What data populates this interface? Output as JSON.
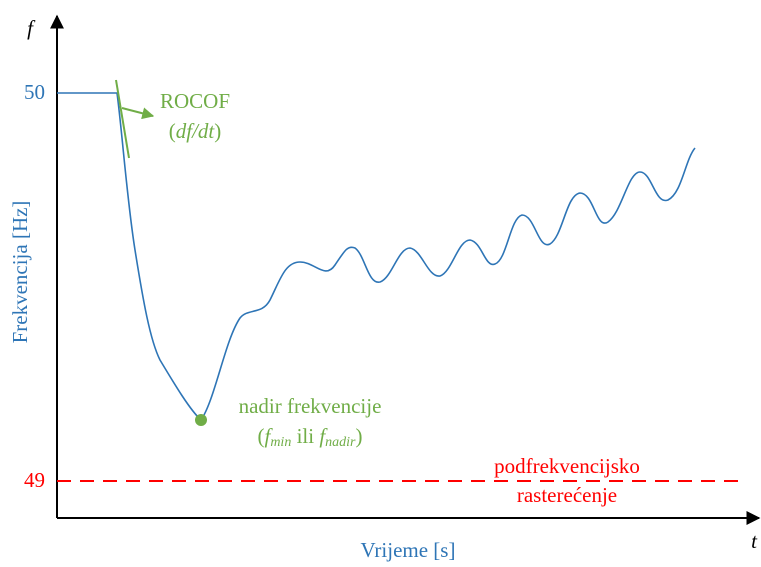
{
  "axes": {
    "y_symbol": "f",
    "x_symbol": "t",
    "y_label": "Frekvencija [Hz]",
    "x_label": "Vrijeme [s]",
    "tick_top": "50",
    "tick_bottom": "49"
  },
  "annotations": {
    "rocof": {
      "title": "ROCOF",
      "formula": [
        "(",
        "df/dt",
        ")"
      ]
    },
    "nadir": {
      "title": "nadir frekvencije",
      "formula": [
        "(",
        "f",
        "min",
        " ili ",
        "f",
        "nadir",
        ")"
      ]
    },
    "shedding": {
      "line1": "podfrekvencijsko",
      "line2": "rasterećenje"
    }
  }
}
